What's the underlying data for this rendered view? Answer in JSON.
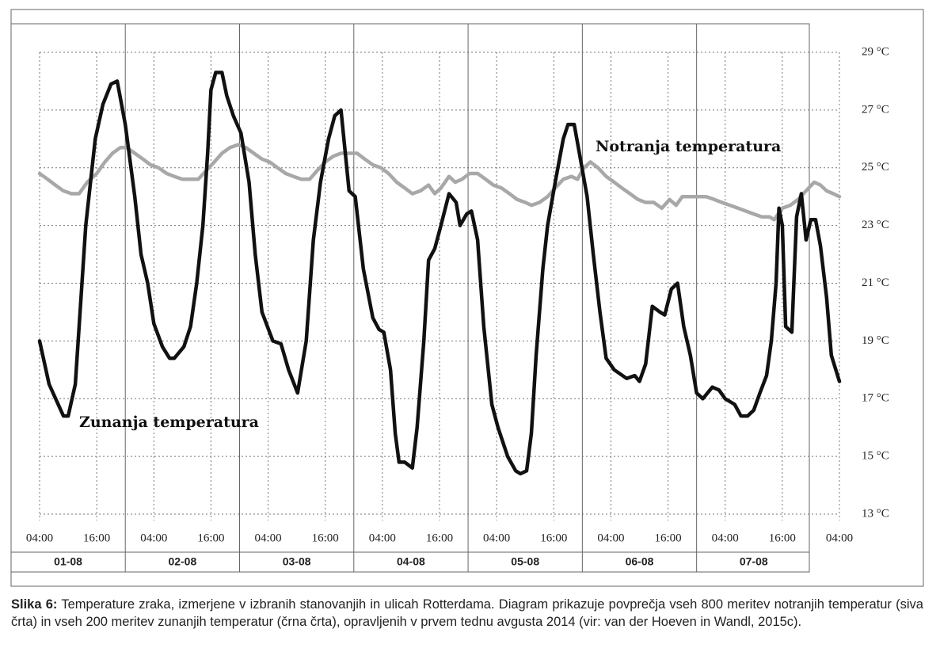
{
  "chart_data": {
    "type": "line",
    "xlim": [
      0,
      168
    ],
    "xticks": [
      {
        "value": 0,
        "label": "04:00"
      },
      {
        "value": 12,
        "label": "16:00"
      },
      {
        "value": 24,
        "label": "04:00"
      },
      {
        "value": 36,
        "label": "16:00"
      },
      {
        "value": 48,
        "label": "04:00"
      },
      {
        "value": 60,
        "label": "16:00"
      },
      {
        "value": 72,
        "label": "04:00"
      },
      {
        "value": 84,
        "label": "16:00"
      },
      {
        "value": 96,
        "label": "04:00"
      },
      {
        "value": 108,
        "label": "16:00"
      },
      {
        "value": 120,
        "label": "04:00"
      },
      {
        "value": 132,
        "label": "16:00"
      },
      {
        "value": 144,
        "label": "04:00"
      },
      {
        "value": 156,
        "label": "16:00"
      },
      {
        "value": 168,
        "label": "04:00"
      }
    ],
    "ylim": [
      13,
      29
    ],
    "yticks": [
      {
        "value": 13,
        "label": "13 °C"
      },
      {
        "value": 15,
        "label": "15 °C"
      },
      {
        "value": 17,
        "label": "17 °C"
      },
      {
        "value": 19,
        "label": "19 °C"
      },
      {
        "value": 21,
        "label": "21 °C"
      },
      {
        "value": 23,
        "label": "23 °C"
      },
      {
        "value": 25,
        "label": "25 °C"
      },
      {
        "value": 27,
        "label": "27 °C"
      },
      {
        "value": 29,
        "label": "29 °C"
      }
    ],
    "grid": true,
    "days": [
      "01-08",
      "02-08",
      "03-08",
      "04-08",
      "05-08",
      "06-08",
      "07-08"
    ],
    "day_edges": [
      -6,
      18,
      42,
      66,
      90,
      114,
      138,
      162
    ],
    "series": [
      {
        "name": "Notranja temperatura",
        "color": "#a8a8a8",
        "x": [
          0,
          1.7,
          3.3,
          5,
          6.7,
          8.3,
          10,
          12,
          13.7,
          15.3,
          17,
          18.3,
          20,
          21.7,
          23.3,
          25,
          26.7,
          28.3,
          30,
          31.7,
          33.3,
          35,
          36.7,
          38.3,
          40,
          41.7,
          43.3,
          45,
          46.7,
          48.3,
          50,
          51.7,
          53.3,
          55,
          56.7,
          58.3,
          60,
          61.7,
          63.3,
          65,
          66.7,
          68.3,
          70,
          71.7,
          73.3,
          75,
          76.7,
          78.3,
          80,
          81.7,
          83,
          84.3,
          86,
          87.3,
          88.7,
          90.3,
          92,
          93.7,
          95.3,
          97,
          98.7,
          100.3,
          102,
          103.3,
          105,
          106.7,
          108.3,
          110,
          111.7,
          113,
          114.3,
          115.7,
          117.3,
          119,
          120.7,
          122.3,
          124,
          125.7,
          127.3,
          129,
          130.7,
          132.3,
          133.7,
          135,
          136.7,
          138.3,
          140,
          141.7,
          143.3,
          145,
          146.7,
          148.3,
          150,
          151.7,
          153.3,
          154.3,
          156,
          157.7,
          159.3,
          161,
          162.7,
          164,
          165.3,
          166.7,
          168
        ],
        "values": [
          24.8,
          24.6,
          24.4,
          24.2,
          24.1,
          24.1,
          24.5,
          24.8,
          25.2,
          25.5,
          25.7,
          25.7,
          25.5,
          25.3,
          25.1,
          25.0,
          24.8,
          24.7,
          24.6,
          24.6,
          24.6,
          24.9,
          25.2,
          25.5,
          25.7,
          25.8,
          25.7,
          25.5,
          25.3,
          25.2,
          25.0,
          24.8,
          24.7,
          24.6,
          24.6,
          24.9,
          25.2,
          25.4,
          25.5,
          25.5,
          25.5,
          25.3,
          25.1,
          25.0,
          24.8,
          24.5,
          24.3,
          24.1,
          24.2,
          24.4,
          24.1,
          24.3,
          24.7,
          24.5,
          24.6,
          24.8,
          24.8,
          24.6,
          24.4,
          24.3,
          24.1,
          23.9,
          23.8,
          23.7,
          23.8,
          24.0,
          24.3,
          24.6,
          24.7,
          24.6,
          25.0,
          25.2,
          25.0,
          24.7,
          24.5,
          24.3,
          24.1,
          23.9,
          23.8,
          23.8,
          23.6,
          23.9,
          23.7,
          24.0,
          24.0,
          24.0,
          24.0,
          23.9,
          23.8,
          23.7,
          23.6,
          23.5,
          23.4,
          23.3,
          23.3,
          23.2,
          23.6,
          23.7,
          23.9,
          24.2,
          24.5,
          24.4,
          24.2,
          24.1,
          24.0
        ]
      },
      {
        "name": "Zunanja temperatura",
        "color": "#111111",
        "x": [
          0,
          2,
          5,
          6,
          7.5,
          8.3,
          9.7,
          11.7,
          13.3,
          15,
          16.3,
          18,
          20,
          21.3,
          22.7,
          24,
          25.8,
          27.3,
          28.3,
          30.3,
          31.7,
          33,
          34.3,
          35.3,
          36,
          37,
          38.3,
          39.3,
          40.7,
          42.3,
          44,
          45.3,
          46.7,
          49,
          50.7,
          52.3,
          54.2,
          56,
          57.5,
          59,
          60.7,
          62,
          63.3,
          65,
          66.3,
          68,
          70,
          71.3,
          72.3,
          73.7,
          74.7,
          75.5,
          76.7,
          78.3,
          79.3,
          80.7,
          81.7,
          83,
          84.3,
          86,
          87.5,
          88.3,
          89.7,
          90.7,
          92,
          93.3,
          95,
          96.3,
          98.3,
          100,
          101,
          102.3,
          103.3,
          104.3,
          105.7,
          106.7,
          108.3,
          110,
          111,
          112.3,
          113.7,
          115,
          116.3,
          117.7,
          119,
          120.7,
          123.3,
          125,
          126,
          127.3,
          128.7,
          130.3,
          131.3,
          132.7,
          134,
          135.3,
          136.7,
          138,
          139.3,
          141.3,
          142.7,
          144,
          146,
          147.3,
          148.7,
          150,
          151.3,
          152.7,
          153.7,
          154.7,
          155.3,
          156,
          156.7,
          158,
          159,
          160,
          161,
          162,
          163,
          164,
          165.3,
          166.3,
          168
        ],
        "values": [
          19.0,
          17.5,
          16.4,
          16.4,
          17.5,
          19.5,
          23,
          26,
          27.2,
          27.9,
          28.0,
          26.5,
          24,
          22,
          21,
          19.6,
          18.8,
          18.4,
          18.4,
          18.8,
          19.5,
          21,
          23,
          25.5,
          27.7,
          28.3,
          28.3,
          27.5,
          26.8,
          26.2,
          24.5,
          22,
          20,
          19,
          18.9,
          18,
          17.2,
          19,
          22.5,
          24.5,
          26,
          26.8,
          27.0,
          24.2,
          24,
          21.5,
          19.8,
          19.4,
          19.3,
          18,
          15.8,
          14.8,
          14.8,
          14.6,
          16,
          19,
          21.8,
          22.2,
          23,
          24.1,
          23.8,
          23,
          23.4,
          23.5,
          22.5,
          19.5,
          16.8,
          16,
          15,
          14.5,
          14.4,
          14.5,
          15.8,
          18.5,
          21.5,
          23,
          24.5,
          26,
          26.5,
          26.5,
          25.2,
          24,
          22,
          20,
          18.4,
          18,
          17.7,
          17.8,
          17.6,
          18.2,
          20.2,
          20,
          19.9,
          20.8,
          21,
          19.5,
          18.5,
          17.2,
          17,
          17.4,
          17.3,
          17,
          16.8,
          16.4,
          16.4,
          16.6,
          17.2,
          17.8,
          19,
          21,
          23.6,
          23,
          19.5,
          19.3,
          23.3,
          24.1,
          22.5,
          23.2,
          23.2,
          22.3,
          20.5,
          18.5,
          17.6
        ]
      }
    ]
  },
  "caption": {
    "label": "Slika 6:",
    "text": "Temperature zraka, izmerjene v izbranih stanovanjih in ulicah Rotterdama. Diagram prikazuje povprečja vseh 800 meritev notranjih temperatur (siva črta) in vseh 200 meritev zunanjih temperatur (črna črta), opravljenih v prvem tednu avgusta 2014 (vir: van der Hoeven in Wandl, 2015c)."
  }
}
